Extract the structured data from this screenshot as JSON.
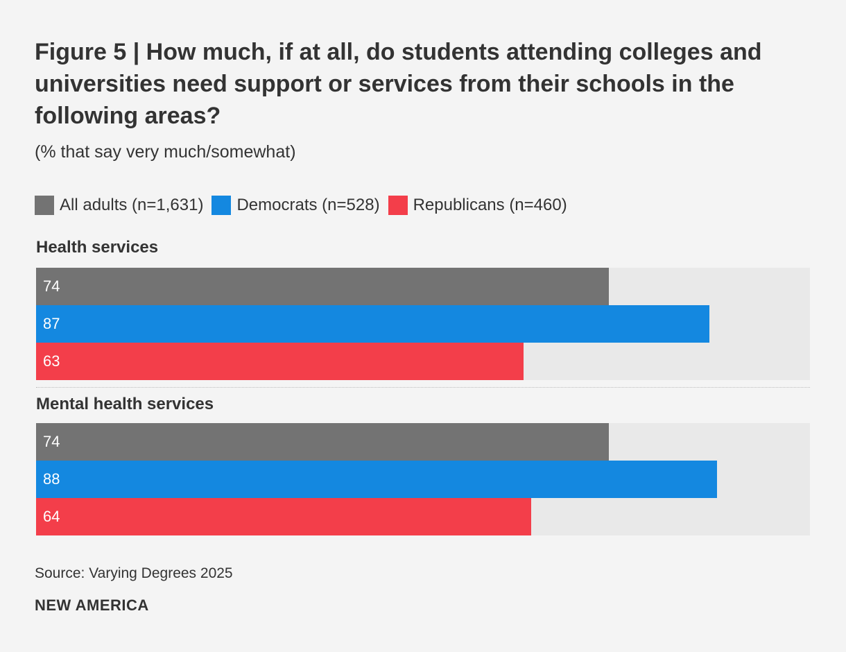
{
  "title": "Figure 5 | How much, if at all, do students attending colleges and universities need support or services from their schools in the following areas?",
  "subtitle": "(% that say very much/somewhat)",
  "source": "Source: Varying Degrees 2025",
  "brand": "NEW AMERICA",
  "chart_data": {
    "type": "bar",
    "orientation": "horizontal",
    "xlim": [
      0,
      100
    ],
    "grid": false,
    "legend_position": "top-left",
    "categories": [
      "Health services",
      "Mental health services"
    ],
    "series": [
      {
        "name": "All adults (n=1,631)",
        "color": "#737373",
        "values": [
          74,
          74
        ]
      },
      {
        "name": "Democrats (n=528)",
        "color": "#1488e0",
        "values": [
          87,
          88
        ]
      },
      {
        "name": "Republicans (n=460)",
        "color": "#f33e4a",
        "values": [
          63,
          64
        ]
      }
    ]
  }
}
